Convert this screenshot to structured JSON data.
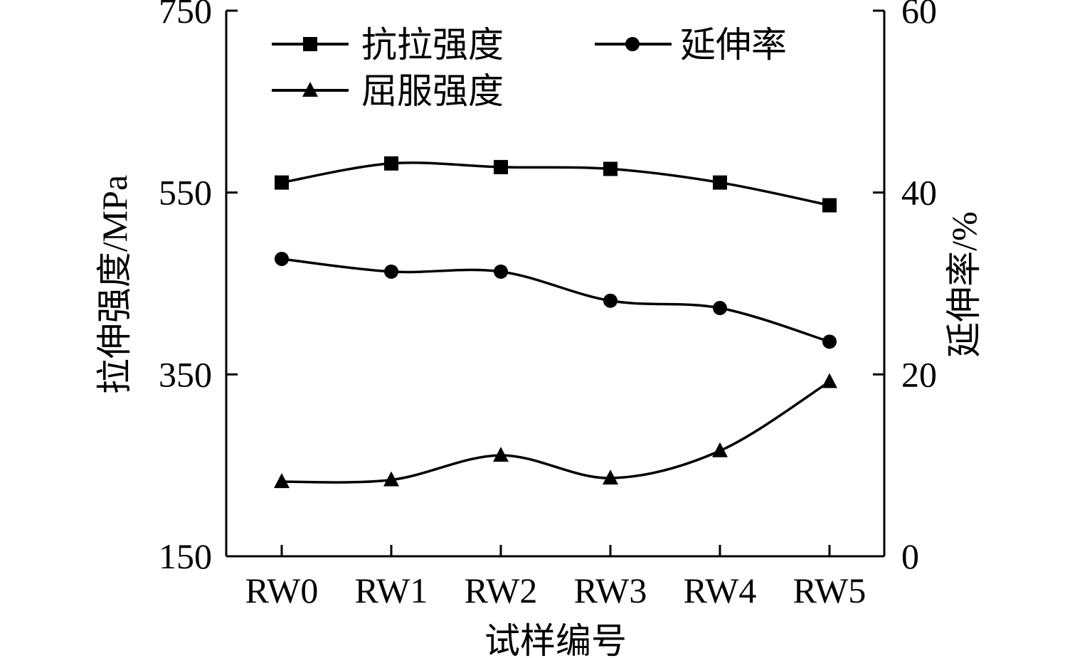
{
  "chart_data": {
    "type": "line",
    "categories": [
      "RW0",
      "RW1",
      "RW2",
      "RW3",
      "RW4",
      "RW5"
    ],
    "xlabel": "试样编号",
    "ylabel_left": "拉伸强度/MPa",
    "ylabel_right": "延伸率/%",
    "ylim_left": [
      150,
      750
    ],
    "ylim_right": [
      0,
      60
    ],
    "yticks_left": [
      150,
      350,
      550,
      750
    ],
    "yticks_right": [
      0,
      20,
      40,
      60
    ],
    "grid": false,
    "legend_position": "top",
    "series": [
      {
        "name": "抗拉强度",
        "marker": "square",
        "axis": "left",
        "values": [
          561,
          582,
          578,
          576,
          561,
          536
        ]
      },
      {
        "name": "屈服强度",
        "marker": "triangle",
        "axis": "left",
        "values": [
          232,
          234,
          261,
          236,
          266,
          342
        ]
      },
      {
        "name": "延伸率",
        "marker": "circle",
        "axis": "right",
        "values": [
          32.7,
          31.3,
          31.3,
          28.1,
          27.3,
          23.6
        ]
      }
    ]
  }
}
